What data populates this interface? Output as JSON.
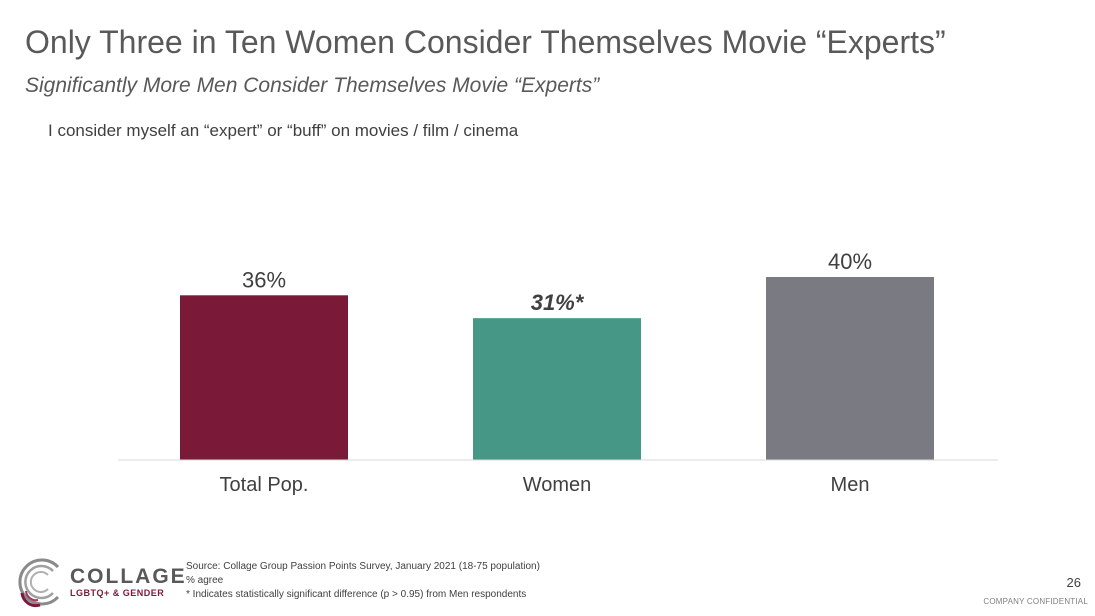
{
  "header": {
    "title": "Only Three in Ten Women Consider Themselves Movie “Experts”",
    "subtitle": "Significantly More Men Consider Themselves Movie “Experts”",
    "question": "I consider myself an “expert” or “buff” on movies / film / cinema"
  },
  "chart_data": {
    "type": "bar",
    "categories": [
      "Total Pop.",
      "Women",
      "Men"
    ],
    "values": [
      36,
      31,
      40
    ],
    "value_labels": [
      "36%",
      "31%*",
      "40%"
    ],
    "highlight": [
      false,
      true,
      false
    ],
    "colors": [
      "#7b1a38",
      "#469785",
      "#7a7b82"
    ],
    "title": "",
    "xlabel": "",
    "ylabel": "",
    "ylim": [
      0,
      40
    ],
    "grid": false,
    "legend": "none"
  },
  "footer": {
    "source": "Source: Collage Group Passion Points Survey, January 2021 (18-75 population)",
    "metric": "% agree",
    "note": "* Indicates statistically significant difference (p > 0.95) from Men respondents"
  },
  "page_number": "26",
  "confidential": "COMPANY CONFIDENTIAL",
  "logo": {
    "name": "COLLAGE",
    "tagline": "LGBTQ+ & GENDER",
    "icon": "collage-logo-icon"
  }
}
